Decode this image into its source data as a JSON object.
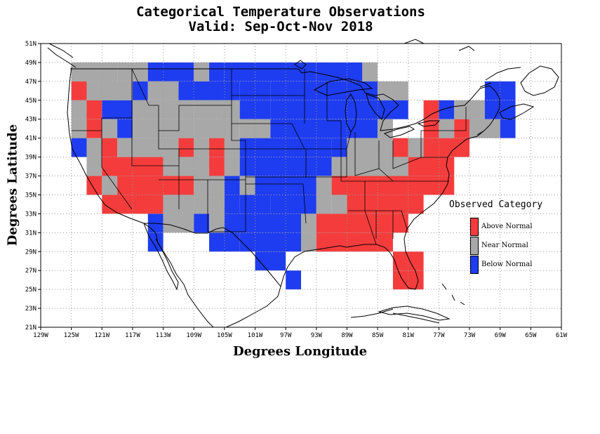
{
  "title": "Categorical Temperature Observations",
  "subtitle": "Valid: Sep-Oct-Nov 2018",
  "xlabel": "Degrees Longitude",
  "ylabel": "Degrees Latitude",
  "xticks": [
    "129W",
    "125W",
    "121W",
    "117W",
    "113W",
    "109W",
    "105W",
    "101W",
    "97W",
    "93W",
    "89W",
    "85W",
    "81W",
    "77W",
    "73W",
    "69W",
    "65W",
    "61W"
  ],
  "yticks": [
    "21N",
    "23N",
    "25N",
    "27N",
    "29N",
    "31N",
    "33N",
    "35N",
    "37N",
    "39N",
    "41N",
    "43N",
    "45N",
    "47N",
    "49N",
    "51N"
  ],
  "legend": {
    "title": "Observed Category",
    "items": [
      {
        "label": "Above Normal",
        "color": "#f53c3c"
      },
      {
        "label": "Near Normal",
        "color": "#a8a8a8"
      },
      {
        "label": "Below Normal",
        "color": "#1e3cf0"
      }
    ]
  },
  "colors": {
    "A": "#f53c3c",
    "N": "#a8a8a8",
    "B": "#1e3cf0"
  },
  "chart_data": {
    "type": "heatmap",
    "title": "Categorical Temperature Observations",
    "subtitle": "Valid: Sep-Oct-Nov 2018",
    "xlabel": "Degrees Longitude",
    "ylabel": "Degrees Latitude",
    "xlim": [
      -129,
      -61
    ],
    "ylim": [
      21,
      51
    ],
    "grid": true,
    "legend_position": "right",
    "categories": [
      "Above Normal",
      "Near Normal",
      "Below Normal"
    ],
    "cell_size_degrees": 2,
    "rows": [
      {
        "lat_top": 49,
        "cells": [
          [
            -125,
            -119,
            "N"
          ],
          [
            -119,
            -115,
            "N"
          ],
          [
            -115,
            -109,
            "B"
          ],
          [
            -109,
            -107,
            "N"
          ],
          [
            -107,
            -105,
            "B"
          ],
          [
            -105,
            -93,
            "B"
          ],
          [
            -93,
            -87,
            "B"
          ],
          [
            -87,
            -85,
            "N"
          ]
        ]
      },
      {
        "lat_top": 47,
        "cells": [
          [
            -125,
            -123,
            "A"
          ],
          [
            -123,
            -117,
            "N"
          ],
          [
            -117,
            -115,
            "B"
          ],
          [
            -115,
            -111,
            "N"
          ],
          [
            -111,
            -103,
            "B"
          ],
          [
            -103,
            -99,
            "B"
          ],
          [
            -99,
            -85,
            "B"
          ],
          [
            -85,
            -81,
            "N"
          ],
          [
            -71,
            -67,
            "B"
          ]
        ]
      },
      {
        "lat_top": 45,
        "cells": [
          [
            -125,
            -123,
            "N"
          ],
          [
            -123,
            -121,
            "A"
          ],
          [
            -121,
            -117,
            "B"
          ],
          [
            -117,
            -109,
            "N"
          ],
          [
            -109,
            -103,
            "N"
          ],
          [
            -103,
            -99,
            "B"
          ],
          [
            -99,
            -81,
            "B"
          ],
          [
            -79,
            -77,
            "A"
          ],
          [
            -77,
            -75,
            "B"
          ],
          [
            -75,
            -71,
            "N"
          ],
          [
            -71,
            -67,
            "B"
          ]
        ]
      },
      {
        "lat_top": 43,
        "cells": [
          [
            -125,
            -123,
            "N"
          ],
          [
            -123,
            -121,
            "A"
          ],
          [
            -121,
            -119,
            "N"
          ],
          [
            -119,
            -117,
            "B"
          ],
          [
            -117,
            -109,
            "N"
          ],
          [
            -109,
            -103,
            "N"
          ],
          [
            -103,
            -99,
            "N"
          ],
          [
            -99,
            -85,
            "B"
          ],
          [
            -85,
            -83,
            "N"
          ],
          [
            -79,
            -77,
            "A"
          ],
          [
            -77,
            -75,
            "N"
          ],
          [
            -75,
            -73,
            "A"
          ],
          [
            -73,
            -69,
            "N"
          ],
          [
            -69,
            -67,
            "B"
          ]
        ]
      },
      {
        "lat_top": 41,
        "cells": [
          [
            -125,
            -123,
            "B"
          ],
          [
            -123,
            -121,
            "N"
          ],
          [
            -121,
            -119,
            "A"
          ],
          [
            -119,
            -113,
            "N"
          ],
          [
            -113,
            -111,
            "N"
          ],
          [
            -111,
            -109,
            "A"
          ],
          [
            -109,
            -107,
            "N"
          ],
          [
            -107,
            -105,
            "A"
          ],
          [
            -105,
            -103,
            "N"
          ],
          [
            -103,
            -91,
            "B"
          ],
          [
            -91,
            -89,
            "B"
          ],
          [
            -89,
            -83,
            "N"
          ],
          [
            -83,
            -81,
            "A"
          ],
          [
            -81,
            -79,
            "N"
          ],
          [
            -79,
            -73,
            "A"
          ]
        ]
      },
      {
        "lat_top": 39,
        "cells": [
          [
            -123,
            -121,
            "N"
          ],
          [
            -121,
            -113,
            "A"
          ],
          [
            -113,
            -111,
            "N"
          ],
          [
            -111,
            -107,
            "N"
          ],
          [
            -107,
            -105,
            "A"
          ],
          [
            -105,
            -103,
            "N"
          ],
          [
            -103,
            -101,
            "B"
          ],
          [
            -101,
            -91,
            "B"
          ],
          [
            -91,
            -81,
            "N"
          ],
          [
            -81,
            -75,
            "A"
          ]
        ]
      },
      {
        "lat_top": 37,
        "cells": [
          [
            -123,
            -121,
            "A"
          ],
          [
            -121,
            -119,
            "N"
          ],
          [
            -119,
            -109,
            "A"
          ],
          [
            -109,
            -105,
            "N"
          ],
          [
            -105,
            -103,
            "B"
          ],
          [
            -103,
            -101,
            "N"
          ],
          [
            -101,
            -93,
            "B"
          ],
          [
            -93,
            -91,
            "N"
          ],
          [
            -91,
            -75,
            "A"
          ]
        ]
      },
      {
        "lat_top": 35,
        "cells": [
          [
            -121,
            -113,
            "A"
          ],
          [
            -113,
            -109,
            "N"
          ],
          [
            -109,
            -105,
            "N"
          ],
          [
            -105,
            -103,
            "B"
          ],
          [
            -103,
            -99,
            "B"
          ],
          [
            -99,
            -93,
            "B"
          ],
          [
            -93,
            -91,
            "N"
          ],
          [
            -91,
            -89,
            "N"
          ],
          [
            -89,
            -79,
            "A"
          ]
        ]
      },
      {
        "lat_top": 33,
        "cells": [
          [
            -115,
            -113,
            "B"
          ],
          [
            -113,
            -109,
            "N"
          ],
          [
            -109,
            -107,
            "B"
          ],
          [
            -107,
            -105,
            "N"
          ],
          [
            -105,
            -95,
            "B"
          ],
          [
            -95,
            -93,
            "N"
          ],
          [
            -93,
            -81,
            "A"
          ]
        ]
      },
      {
        "lat_top": 31,
        "cells": [
          [
            -115,
            -113,
            "B"
          ],
          [
            -107,
            -103,
            "B"
          ],
          [
            -103,
            -95,
            "B"
          ],
          [
            -95,
            -93,
            "N"
          ],
          [
            -93,
            -83,
            "A"
          ]
        ]
      },
      {
        "lat_top": 29,
        "cells": [
          [
            -101,
            -97,
            "B"
          ],
          [
            -83,
            -79,
            "A"
          ]
        ]
      },
      {
        "lat_top": 27,
        "cells": [
          [
            -97,
            -95,
            "B"
          ],
          [
            -83,
            -79,
            "A"
          ]
        ]
      }
    ]
  }
}
